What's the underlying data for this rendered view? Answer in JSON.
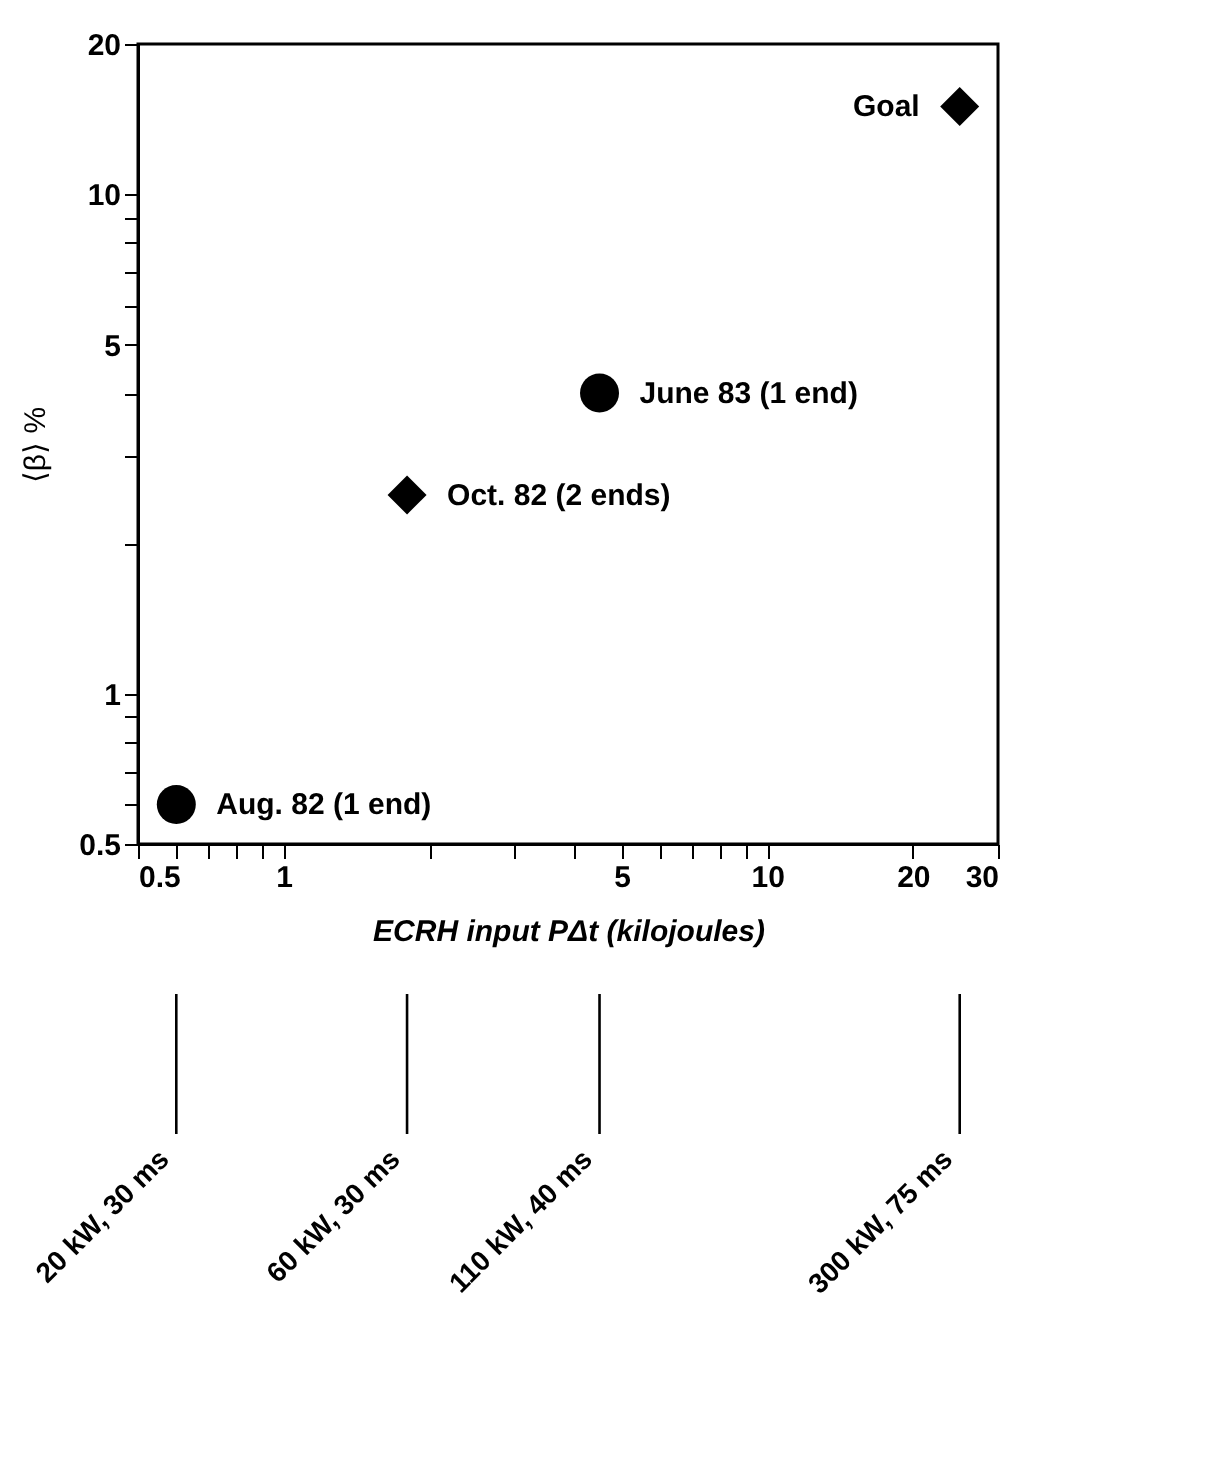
{
  "chart_data": {
    "type": "scatter",
    "xlabel": "ECRH input PΔt (kilojoules)",
    "ylabel": "⟨β⟩ %",
    "series": [
      {
        "marker": "circle",
        "color": "#000000",
        "x": [
          0.6,
          4.5
        ],
        "values": [
          0.6,
          4.0
        ]
      },
      {
        "marker": "diamond",
        "color": "#000000",
        "x": [
          1.8,
          25
        ],
        "values": [
          2.5,
          15
        ]
      }
    ],
    "log": "xy",
    "xlim": [
      0.5,
      30
    ],
    "ylim": [
      0.5,
      20
    ],
    "xticks": [
      0.5,
      {
        "value": 0.6,
        "label": null
      },
      {
        "value": 0.7,
        "label": null
      },
      {
        "value": 0.8,
        "label": null
      },
      {
        "value": 0.9,
        "label": null
      },
      1,
      {
        "value": 2,
        "label": null
      },
      {
        "value": 3,
        "label": null
      },
      {
        "value": 4,
        "label": null
      },
      5,
      {
        "value": 6,
        "label": null
      },
      {
        "value": 7,
        "label": null
      },
      {
        "value": 8,
        "label": null
      },
      {
        "value": 9,
        "label": null
      },
      10,
      20,
      30
    ],
    "yticks": [
      0.5,
      {
        "value": 0.6,
        "label": null
      },
      {
        "value": 0.7,
        "label": null
      },
      {
        "value": 0.8,
        "label": null
      },
      {
        "value": 0.9,
        "label": null
      },
      1,
      {
        "value": 2,
        "label": null
      },
      {
        "value": 3,
        "label": null
      },
      {
        "value": 4,
        "label": null
      },
      5,
      {
        "value": 6,
        "label": null
      },
      {
        "value": 7,
        "label": null
      },
      {
        "value": 8,
        "label": null
      },
      {
        "value": 9,
        "label": null
      },
      10,
      20
    ],
    "grid": false,
    "annotations": [
      {
        "text": "Aug. 82 (1 end)",
        "x": 0.6,
        "y": 0.6
      },
      {
        "text": "Oct. 82 (2 ends)",
        "x": 1.8,
        "y": 2.5
      },
      {
        "text": "June 83 (1 end)",
        "x": 4.5,
        "y": 4.0
      },
      {
        "text": "Goal",
        "x": 25,
        "y": 15
      },
      "20 kW, 30 ms",
      "60 kW, 30 ms",
      "110 kW, 40 ms",
      "300 kW, 75 ms"
    ]
  }
}
